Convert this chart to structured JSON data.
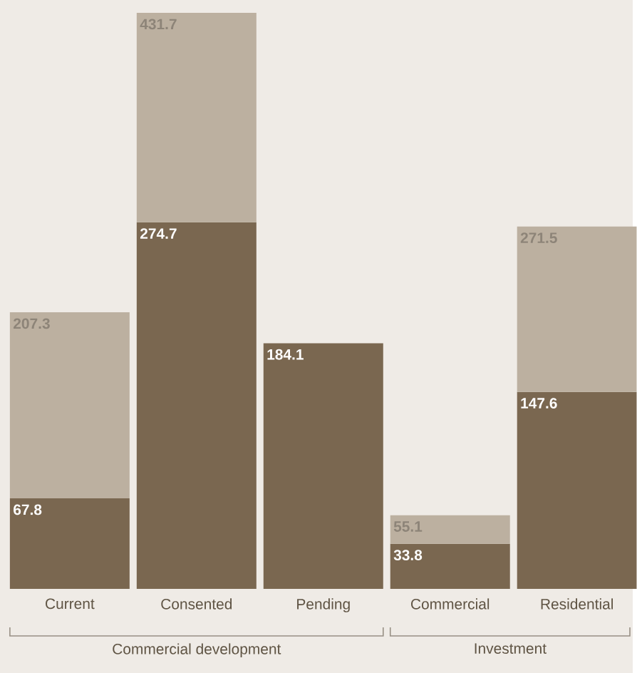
{
  "chart_data": {
    "type": "bar",
    "stacked": true,
    "categories": [
      "Current",
      "Consented",
      "Pending",
      "Commercial",
      "Residential"
    ],
    "series": [
      {
        "color": "#7a6750",
        "values": [
          67.8,
          274.7,
          184.1,
          33.8,
          147.6
        ],
        "value_labels": [
          "67.8",
          "274.7",
          "184.1",
          "33.8",
          "147.6"
        ]
      },
      {
        "color": "#bcb0a0",
        "values": [
          139.5,
          157.0,
          null,
          21.3,
          123.9
        ]
      }
    ],
    "totals": [
      "207.3",
      "431.7",
      null,
      "55.1",
      "271.5"
    ],
    "ylim": [
      0,
      431.7
    ],
    "annotations": [
      "Commercial development",
      "Investment"
    ]
  }
}
